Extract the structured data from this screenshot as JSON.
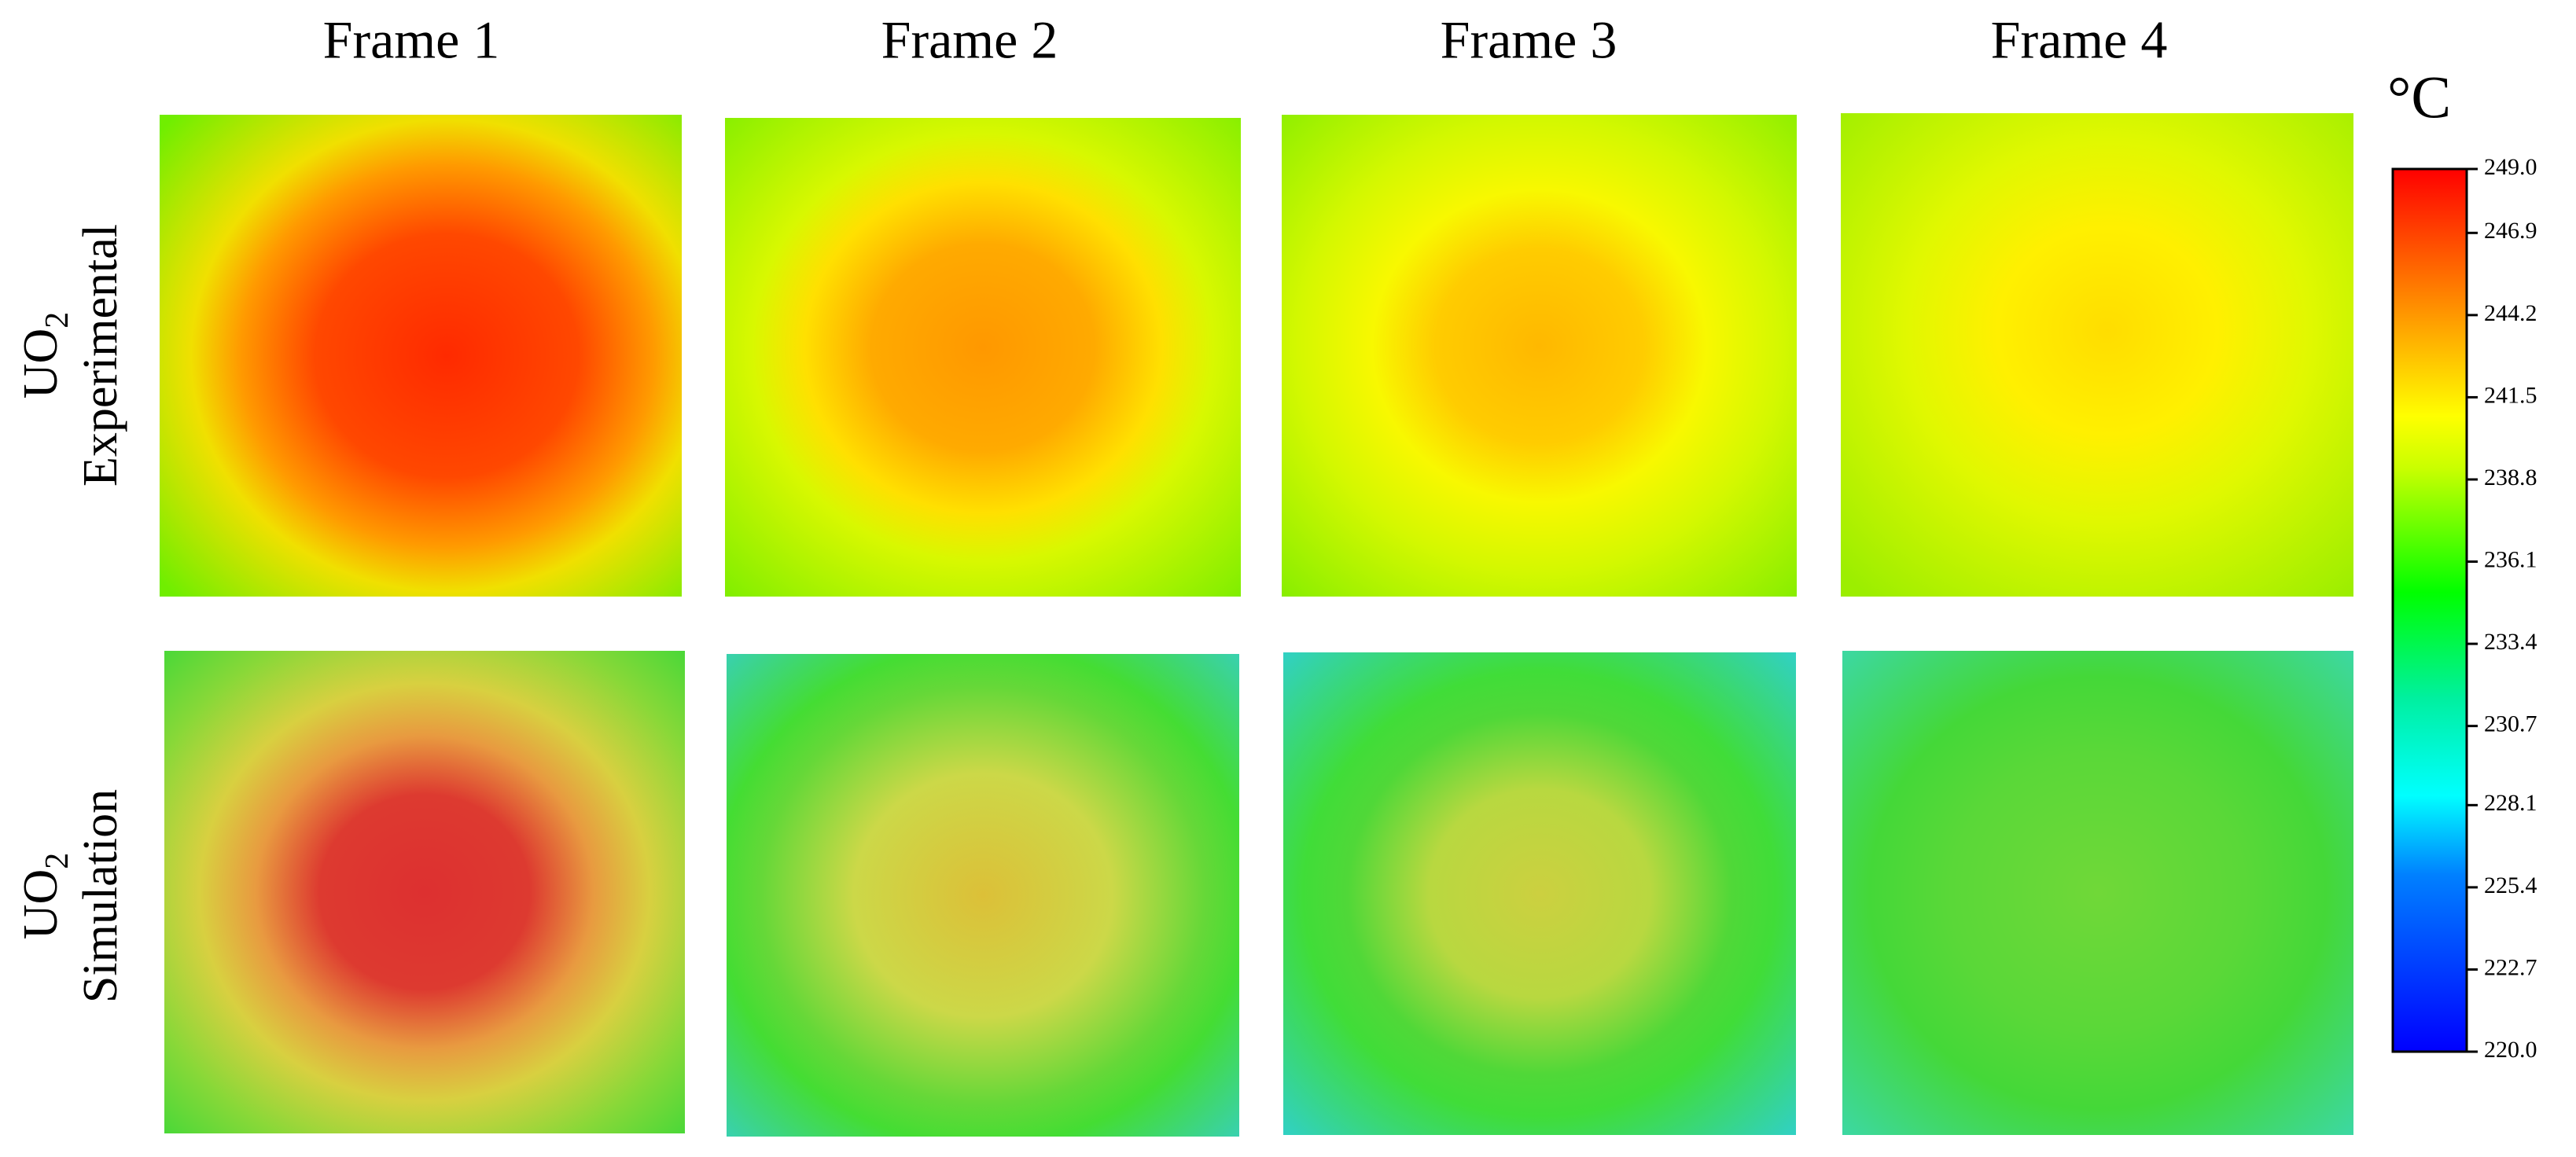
{
  "columns": [
    "Frame 1",
    "Frame 2",
    "Frame 3",
    "Frame 4"
  ],
  "rows": [
    {
      "label": "UO",
      "subscript": "2",
      "sublabel": "Experimental"
    },
    {
      "label": "UO",
      "subscript": "2",
      "sublabel": "Simulation"
    }
  ],
  "colorbar": {
    "unit": "°C",
    "lim": [
      220,
      249
    ],
    "ticks": [
      {
        "value": 220,
        "label": "220.0"
      },
      222.7,
      225.4,
      228.1,
      230.7,
      233.4,
      236.1,
      238.8,
      {
        "value": 241.5,
        "label": "241.5"
      },
      244.2,
      246.9,
      {
        "value": 249,
        "label": "249.0"
      }
    ]
  }
}
